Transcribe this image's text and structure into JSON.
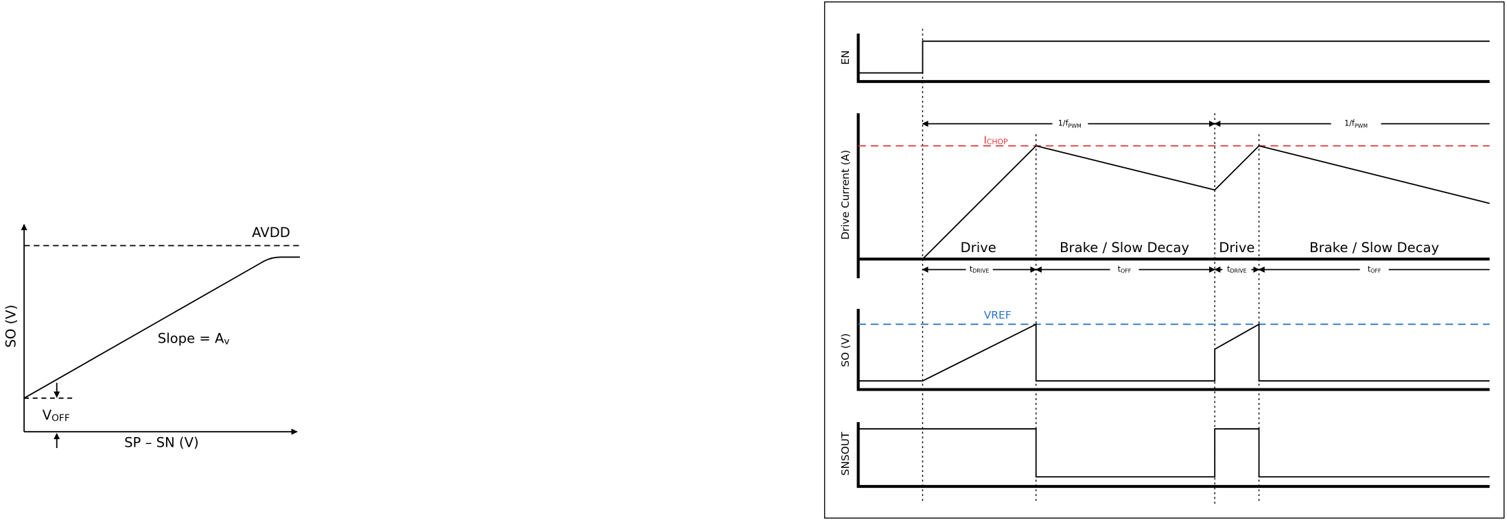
{
  "left": {
    "y_label": "SO (V)",
    "x_label": "SP – SN (V)",
    "avdd": "AVDD",
    "slope": {
      "text": "Slope = A",
      "sub": "v"
    },
    "voff": {
      "text": "V",
      "sub": "OFF"
    }
  },
  "right": {
    "signals": [
      "EN",
      "Drive Current (A)",
      "SO (V)",
      "SNSOUT"
    ],
    "periods": [
      {
        "text": "1/f",
        "sub": "PWM"
      },
      {
        "text": "1/f",
        "sub": "PWM"
      }
    ],
    "ichop": {
      "text": "I",
      "sub": "CHOP"
    },
    "vref": "VREF",
    "phases": [
      "Drive",
      "Brake / Slow Decay",
      "Drive",
      "Brake / Slow Decay"
    ],
    "durations": [
      {
        "text": "t",
        "sub": "DRIVE"
      },
      {
        "text": "t",
        "sub": "OFF"
      },
      {
        "text": "t",
        "sub": "DRIVE"
      },
      {
        "text": "t",
        "sub": "OFF"
      }
    ]
  }
}
